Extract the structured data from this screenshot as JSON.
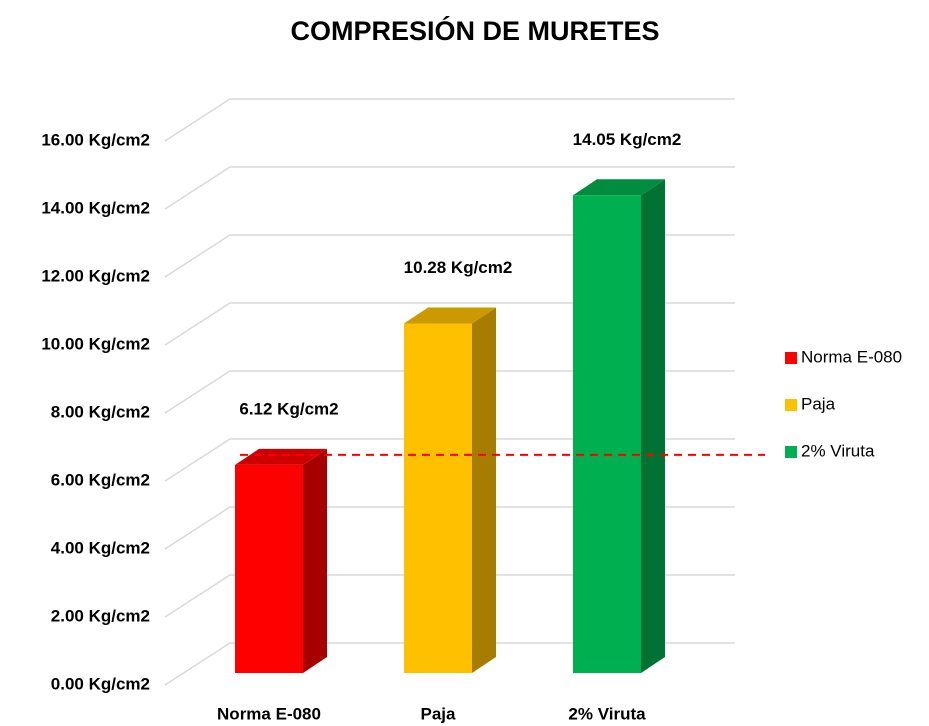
{
  "chart_data": {
    "type": "bar3d",
    "title": "COMPRESIÓN DE MURETES",
    "categories": [
      "Norma E-080",
      "Paja",
      "2% Viruta"
    ],
    "values": [
      6.12,
      10.28,
      14.05
    ],
    "value_labels": [
      "6.12 Kg/cm2",
      "10.28 Kg/cm2",
      "14.05 Kg/cm2"
    ],
    "colors": [
      "#ff0000",
      "#ffc000",
      "#00b050"
    ],
    "ylim": [
      0,
      16
    ],
    "yticks": [
      {
        "value": 0,
        "label": "0.00 Kg/cm2"
      },
      {
        "value": 2,
        "label": "2.00 Kg/cm2"
      },
      {
        "value": 4,
        "label": "4.00 Kg/cm2"
      },
      {
        "value": 6,
        "label": "6.00 Kg/cm2"
      },
      {
        "value": 8,
        "label": "8.00 Kg/cm2"
      },
      {
        "value": 10,
        "label": "10.00 Kg/cm2"
      },
      {
        "value": 12,
        "label": "12.00 Kg/cm2"
      },
      {
        "value": 14,
        "label": "14.00 Kg/cm2"
      },
      {
        "value": 16,
        "label": "16.00 Kg/cm2"
      }
    ],
    "grid": true,
    "legend": "right"
  }
}
